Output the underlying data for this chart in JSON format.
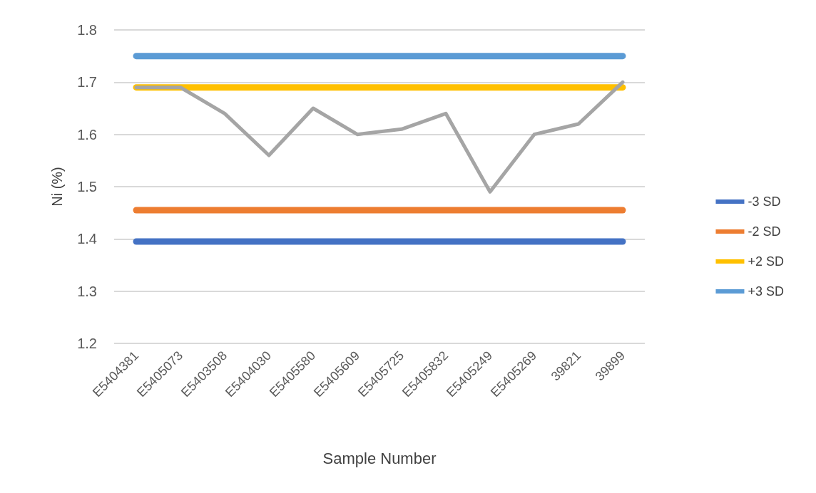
{
  "chart_data": {
    "type": "line",
    "xlabel": "Sample Number",
    "ylabel": "Ni (%)",
    "categories": [
      "E5404381",
      "E5405073",
      "E5403508",
      "E5404030",
      "E5405580",
      "E5405609",
      "E5405725",
      "E5405832",
      "E5405249",
      "E5405269",
      "39821",
      "39899"
    ],
    "series": [
      {
        "name": "-3 SD",
        "color": "#4472c4",
        "values": [
          1.395,
          1.395,
          1.395,
          1.395,
          1.395,
          1.395,
          1.395,
          1.395,
          1.395,
          1.395,
          1.395,
          1.395
        ]
      },
      {
        "name": "-2 SD",
        "color": "#ed7d31",
        "values": [
          1.455,
          1.455,
          1.455,
          1.455,
          1.455,
          1.455,
          1.455,
          1.455,
          1.455,
          1.455,
          1.455,
          1.455
        ]
      },
      {
        "color": "#a5a5a5",
        "values": [
          1.69,
          1.69,
          1.64,
          1.56,
          1.65,
          1.6,
          1.61,
          1.64,
          1.49,
          1.6,
          1.62,
          1.7
        ]
      },
      {
        "name": "+2 SD",
        "color": "#ffc000",
        "values": [
          1.69,
          1.69,
          1.69,
          1.69,
          1.69,
          1.69,
          1.69,
          1.69,
          1.69,
          1.69,
          1.69,
          1.69
        ]
      },
      {
        "name": "+3 SD",
        "color": "#5b9bd5",
        "values": [
          1.75,
          1.75,
          1.75,
          1.75,
          1.75,
          1.75,
          1.75,
          1.75,
          1.75,
          1.75,
          1.75,
          1.75
        ]
      }
    ],
    "ylim": [
      1.2,
      1.8
    ],
    "yticks": [
      1.2,
      1.3,
      1.4,
      1.5,
      1.6,
      1.7,
      1.8
    ],
    "grid": "y",
    "legend": "right",
    "marker": "none",
    "line_style": "solid"
  }
}
